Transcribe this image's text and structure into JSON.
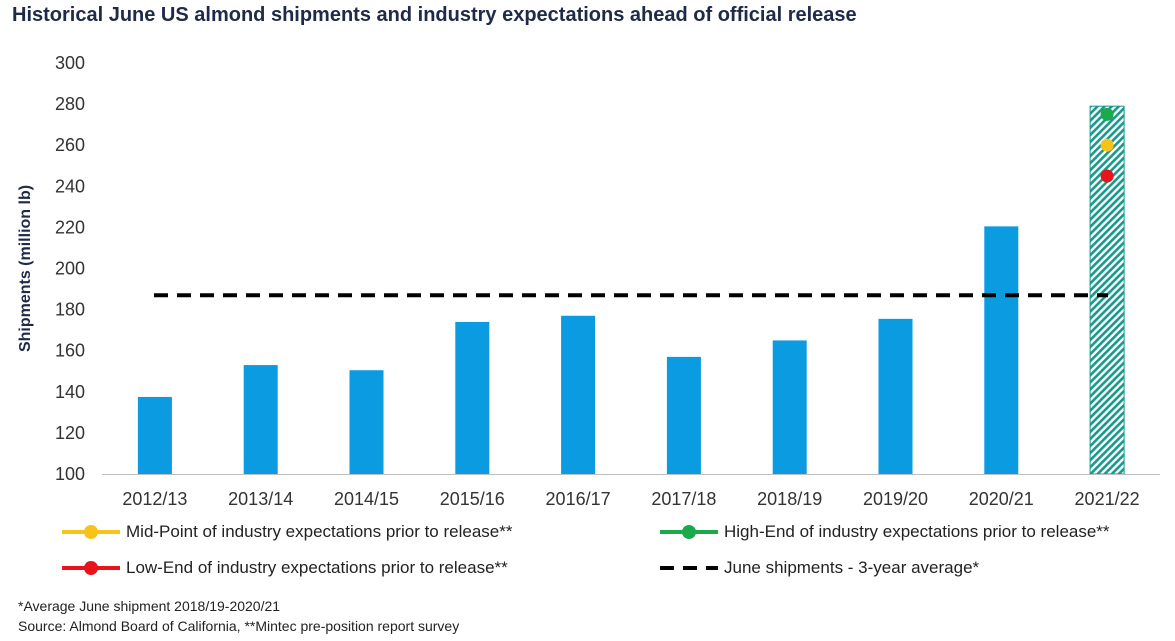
{
  "title": "Historical June US almond shipments and industry expectations ahead of official release",
  "chart_data": {
    "type": "bar",
    "title": "Historical June US almond shipments and industry expectations ahead of official release",
    "ylabel": "Shipments (million lb)",
    "xlabel": "",
    "ylim": [
      100,
      300
    ],
    "yticks": [
      100,
      120,
      140,
      160,
      180,
      200,
      220,
      240,
      260,
      280,
      300
    ],
    "categories": [
      "2012/13",
      "2013/14",
      "2014/15",
      "2015/16",
      "2016/17",
      "2017/18",
      "2018/19",
      "2019/20",
      "2020/21",
      "2021/22"
    ],
    "bar_color": "#0a9be0",
    "series": [
      {
        "name": "",
        "type": "bar",
        "values": [
          137.5,
          153,
          150.5,
          174,
          177,
          157,
          165,
          175.5,
          220.5,
          null
        ]
      },
      {
        "name": "",
        "type": "bar-hatched",
        "category": "2021/22",
        "value": 279,
        "color": "#169a8c"
      }
    ],
    "reference_lines": [
      {
        "name": "June shipments - 3-year average*",
        "value": 187,
        "style": "dashed",
        "color": "#000000"
      }
    ],
    "points": [
      {
        "name": "High-End of industry expectations prior to release**",
        "category": "2021/22",
        "value": 275,
        "color": "#1aaa4b"
      },
      {
        "name": "Mid-Point of industry expectations prior to release**",
        "category": "2021/22",
        "value": 260,
        "color": "#f7c21a"
      },
      {
        "name": "Low-End of industry expectations prior to release**",
        "category": "2021/22",
        "value": 245,
        "color": "#e8141c"
      }
    ],
    "grid": false,
    "legend_position": "bottom"
  },
  "legend": [
    {
      "label": "Mid-Point of industry expectations prior to release**",
      "color": "#f7c21a",
      "kind": "line-dot"
    },
    {
      "label": "High-End of industry expectations prior to release**",
      "color": "#1aaa4b",
      "kind": "line-dot"
    },
    {
      "label": "Low-End of industry expectations prior to release**",
      "color": "#e8141c",
      "kind": "line-dot"
    },
    {
      "label": "June shipments - 3-year average*",
      "color": "#000000",
      "kind": "dashed"
    }
  ],
  "footnotes": {
    "line1": "*Average June shipment 2018/19-2020/21",
    "line2": "Source: Almond Board of California, **Mintec pre-position report survey"
  }
}
